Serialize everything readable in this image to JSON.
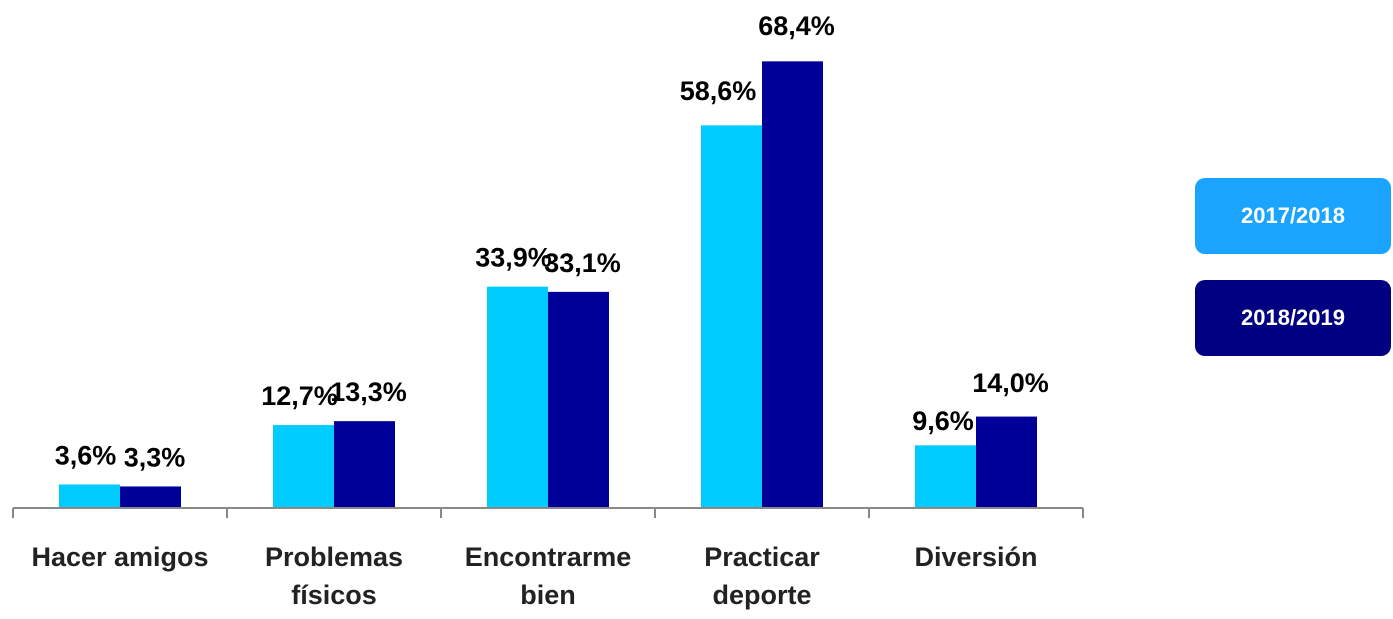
{
  "chart_data": {
    "type": "bar",
    "title": "",
    "xlabel": "",
    "ylabel": "",
    "categories": [
      [
        "Hacer amigos"
      ],
      [
        "Problemas",
        "físicos"
      ],
      [
        "Encontrarme",
        "bien"
      ],
      [
        "Practicar",
        "deporte"
      ],
      [
        "Diversión"
      ]
    ],
    "series": [
      {
        "name": "2017/2018",
        "color": "#00CCFF",
        "values": [
          3.6,
          12.7,
          33.9,
          58.6,
          9.6
        ],
        "labels": [
          "3,6%",
          "12,7%",
          "33,9%",
          "58,6%",
          "9,6%"
        ]
      },
      {
        "name": "2018/2019",
        "color": "#000099",
        "values": [
          3.3,
          13.3,
          33.1,
          68.4,
          14.0
        ],
        "labels": [
          "3,3%",
          "13,3%",
          "33,1%",
          "68,4%",
          "14,0%"
        ]
      }
    ],
    "ylim": [
      0,
      70
    ],
    "grid": false,
    "legend_placement": "right",
    "legend_colors": [
      "#1AA3FF",
      "#000080"
    ]
  }
}
